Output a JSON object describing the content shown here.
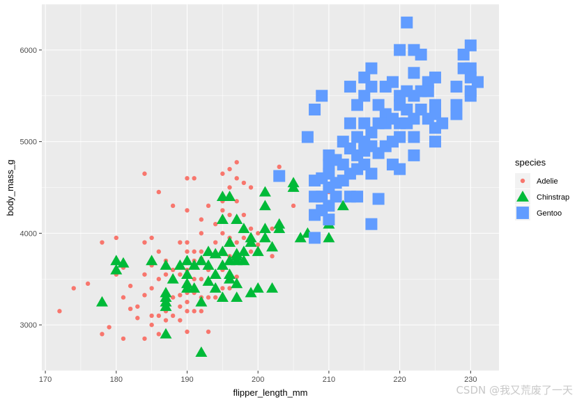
{
  "watermark": "CSDN @我又荒废了一天",
  "colors": {
    "panel_bg": "#EBEBEB",
    "grid": "#FFFFFF",
    "Adelie": "#F8766D",
    "Chinstrap": "#00BA38",
    "Gentoo": "#619CFF"
  },
  "chart_data": {
    "type": "scatter",
    "xlabel": "flipper_length_mm",
    "ylabel": "body_mass_g",
    "xlim": [
      169.5,
      234
    ],
    "ylim": [
      2500,
      6500
    ],
    "x_ticks": [
      170,
      180,
      190,
      200,
      210,
      220,
      230
    ],
    "y_ticks": [
      3000,
      4000,
      5000,
      6000
    ],
    "grid": true,
    "legend": {
      "title": "species",
      "position": "right",
      "entries": [
        {
          "label": "Adelie",
          "shape": "circle"
        },
        {
          "label": "Chinstrap",
          "shape": "triangle"
        },
        {
          "label": "Gentoo",
          "shape": "square"
        }
      ]
    },
    "series": [
      {
        "name": "Adelie",
        "shape": "circle",
        "points": [
          [
            172,
            3150
          ],
          [
            174,
            3400
          ],
          [
            176,
            3450
          ],
          [
            178,
            3900
          ],
          [
            178,
            2900
          ],
          [
            179,
            2975
          ],
          [
            180,
            3950
          ],
          [
            180,
            3700
          ],
          [
            180,
            3550
          ],
          [
            181,
            2850
          ],
          [
            181,
            3300
          ],
          [
            181,
            3625
          ],
          [
            182,
            3175
          ],
          [
            182,
            3425
          ],
          [
            183,
            3075
          ],
          [
            183,
            3200
          ],
          [
            184,
            4650
          ],
          [
            184,
            3900
          ],
          [
            184,
            3550
          ],
          [
            184,
            3325
          ],
          [
            184,
            2850
          ],
          [
            185,
            3950
          ],
          [
            185,
            3650
          ],
          [
            185,
            3400
          ],
          [
            185,
            3100
          ],
          [
            185,
            3000
          ],
          [
            186,
            4450
          ],
          [
            186,
            3800
          ],
          [
            186,
            3500
          ],
          [
            186,
            3100
          ],
          [
            186,
            2900
          ],
          [
            187,
            3700
          ],
          [
            187,
            3550
          ],
          [
            187,
            3350
          ],
          [
            187,
            3200
          ],
          [
            187,
            3150
          ],
          [
            187,
            3050
          ],
          [
            188,
            4300
          ],
          [
            188,
            3600
          ],
          [
            188,
            3500
          ],
          [
            188,
            3300
          ],
          [
            188,
            3100
          ],
          [
            189,
            3900
          ],
          [
            189,
            3550
          ],
          [
            189,
            3325
          ],
          [
            189,
            3200
          ],
          [
            189,
            3050
          ],
          [
            190,
            4600
          ],
          [
            190,
            4250
          ],
          [
            190,
            3900
          ],
          [
            190,
            3800
          ],
          [
            190,
            3675
          ],
          [
            190,
            3600
          ],
          [
            190,
            3450
          ],
          [
            190,
            3350
          ],
          [
            190,
            3250
          ],
          [
            190,
            3150
          ],
          [
            190,
            2925
          ],
          [
            191,
            4600
          ],
          [
            191,
            3800
          ],
          [
            191,
            3700
          ],
          [
            191,
            3500
          ],
          [
            191,
            3350
          ],
          [
            191,
            3150
          ],
          [
            192,
            4150
          ],
          [
            192,
            4000
          ],
          [
            192,
            3800
          ],
          [
            192,
            3725
          ],
          [
            192,
            3500
          ],
          [
            192,
            3300
          ],
          [
            192,
            3150
          ],
          [
            193,
            4300
          ],
          [
            193,
            3800
          ],
          [
            193,
            3600
          ],
          [
            193,
            3300
          ],
          [
            193,
            2925
          ],
          [
            194,
            4100
          ],
          [
            194,
            3900
          ],
          [
            194,
            3775
          ],
          [
            194,
            3550
          ],
          [
            194,
            3300
          ],
          [
            195,
            4650
          ],
          [
            195,
            4350
          ],
          [
            195,
            4250
          ],
          [
            195,
            4000
          ],
          [
            195,
            3800
          ],
          [
            195,
            3600
          ],
          [
            195,
            3400
          ],
          [
            196,
            4700
          ],
          [
            196,
            4500
          ],
          [
            196,
            4400
          ],
          [
            196,
            4200
          ],
          [
            196,
            3950
          ],
          [
            196,
            3750
          ],
          [
            196,
            3550
          ],
          [
            196,
            3400
          ],
          [
            197,
            4775
          ],
          [
            197,
            4600
          ],
          [
            197,
            4350
          ],
          [
            197,
            4150
          ],
          [
            197,
            3900
          ],
          [
            197,
            3700
          ],
          [
            197,
            3525
          ],
          [
            198,
            4550
          ],
          [
            198,
            4200
          ],
          [
            198,
            3950
          ],
          [
            198,
            3700
          ],
          [
            199,
            4500
          ],
          [
            199,
            4050
          ],
          [
            199,
            3800
          ],
          [
            200,
            4000
          ],
          [
            200,
            3875
          ],
          [
            201,
            4050
          ],
          [
            202,
            4050
          ],
          [
            202,
            3750
          ],
          [
            203,
            4725
          ],
          [
            205,
            4300
          ],
          [
            210,
            4450
          ]
        ]
      },
      {
        "name": "Chinstrap",
        "shape": "triangle",
        "points": [
          [
            178,
            3250
          ],
          [
            180,
            3700
          ],
          [
            180,
            3600
          ],
          [
            181,
            3675
          ],
          [
            185,
            3700
          ],
          [
            187,
            3650
          ],
          [
            187,
            3350
          ],
          [
            187,
            3300
          ],
          [
            187,
            3250
          ],
          [
            187,
            3200
          ],
          [
            187,
            2900
          ],
          [
            188,
            3500
          ],
          [
            189,
            3650
          ],
          [
            190,
            3700
          ],
          [
            190,
            3550
          ],
          [
            190,
            3450
          ],
          [
            190,
            3400
          ],
          [
            191,
            3650
          ],
          [
            191,
            3400
          ],
          [
            192,
            3700
          ],
          [
            192,
            3250
          ],
          [
            192,
            2700
          ],
          [
            193,
            3800
          ],
          [
            193,
            3650
          ],
          [
            193,
            3475
          ],
          [
            194,
            3775
          ],
          [
            194,
            3550
          ],
          [
            194,
            3400
          ],
          [
            195,
            4400
          ],
          [
            195,
            4150
          ],
          [
            195,
            3800
          ],
          [
            195,
            3650
          ],
          [
            195,
            3300
          ],
          [
            196,
            4400
          ],
          [
            196,
            3900
          ],
          [
            196,
            3700
          ],
          [
            196,
            3550
          ],
          [
            196,
            3500
          ],
          [
            197,
            4150
          ],
          [
            197,
            3775
          ],
          [
            197,
            3750
          ],
          [
            197,
            3700
          ],
          [
            197,
            3450
          ],
          [
            197,
            3300
          ],
          [
            198,
            4050
          ],
          [
            198,
            3800
          ],
          [
            198,
            3700
          ],
          [
            199,
            3950
          ],
          [
            199,
            3900
          ],
          [
            199,
            3350
          ],
          [
            200,
            3800
          ],
          [
            200,
            3400
          ],
          [
            201,
            4450
          ],
          [
            201,
            4300
          ],
          [
            201,
            4050
          ],
          [
            201,
            3950
          ],
          [
            202,
            3850
          ],
          [
            202,
            3400
          ],
          [
            203,
            4050
          ],
          [
            203,
            4100
          ],
          [
            205,
            4500
          ],
          [
            205,
            4550
          ],
          [
            206,
            3950
          ],
          [
            207,
            4000
          ],
          [
            210,
            4800
          ],
          [
            210,
            4100
          ],
          [
            210,
            3950
          ],
          [
            212,
            4300
          ]
        ]
      },
      {
        "name": "Gentoo",
        "shape": "square",
        "points": [
          [
            203,
            4625
          ],
          [
            207,
            5050
          ],
          [
            208,
            5350
          ],
          [
            208,
            4575
          ],
          [
            208,
            4400
          ],
          [
            208,
            4200
          ],
          [
            208,
            3950
          ],
          [
            209,
            5500
          ],
          [
            209,
            4600
          ],
          [
            209,
            4400
          ],
          [
            209,
            4250
          ],
          [
            210,
            4850
          ],
          [
            210,
            4750
          ],
          [
            210,
            4650
          ],
          [
            210,
            4500
          ],
          [
            210,
            4300
          ],
          [
            210,
            4150
          ],
          [
            211,
            4800
          ],
          [
            211,
            4550
          ],
          [
            211,
            4400
          ],
          [
            212,
            5000
          ],
          [
            212,
            4750
          ],
          [
            212,
            4575
          ],
          [
            213,
            5600
          ],
          [
            213,
            5200
          ],
          [
            213,
            4925
          ],
          [
            213,
            4650
          ],
          [
            213,
            4400
          ],
          [
            214,
            5400
          ],
          [
            214,
            5050
          ],
          [
            214,
            4850
          ],
          [
            214,
            4700
          ],
          [
            214,
            4400
          ],
          [
            215,
            5700
          ],
          [
            215,
            5500
          ],
          [
            215,
            5200
          ],
          [
            215,
            5000
          ],
          [
            215,
            4900
          ],
          [
            215,
            4750
          ],
          [
            216,
            5800
          ],
          [
            216,
            5600
          ],
          [
            216,
            5100
          ],
          [
            216,
            4950
          ],
          [
            216,
            4650
          ],
          [
            216,
            4100
          ],
          [
            217,
            5400
          ],
          [
            217,
            5200
          ],
          [
            217,
            4875
          ],
          [
            217,
            4375
          ],
          [
            218,
            5600
          ],
          [
            218,
            5300
          ],
          [
            218,
            5200
          ],
          [
            218,
            4950
          ],
          [
            219,
            5650
          ],
          [
            219,
            5250
          ],
          [
            219,
            5000
          ],
          [
            219,
            4750
          ],
          [
            220,
            6000
          ],
          [
            220,
            5500
          ],
          [
            220,
            5400
          ],
          [
            220,
            5200
          ],
          [
            220,
            5050
          ],
          [
            220,
            4700
          ],
          [
            221,
            6300
          ],
          [
            221,
            5550
          ],
          [
            221,
            5350
          ],
          [
            221,
            5200
          ],
          [
            222,
            6000
          ],
          [
            222,
            5750
          ],
          [
            222,
            5500
          ],
          [
            222,
            5250
          ],
          [
            222,
            5050
          ],
          [
            222,
            4850
          ],
          [
            223,
            5950
          ],
          [
            223,
            5550
          ],
          [
            223,
            5350
          ],
          [
            224,
            5650
          ],
          [
            224,
            5550
          ],
          [
            224,
            5250
          ],
          [
            225,
            5700
          ],
          [
            225,
            5400
          ],
          [
            225,
            5300
          ],
          [
            225,
            5150
          ],
          [
            225,
            5000
          ],
          [
            226,
            5200
          ],
          [
            228,
            5600
          ],
          [
            228,
            5400
          ],
          [
            228,
            5300
          ],
          [
            229,
            5950
          ],
          [
            229,
            5800
          ],
          [
            230,
            6050
          ],
          [
            230,
            5800
          ],
          [
            230,
            5700
          ],
          [
            230,
            5550
          ],
          [
            230,
            5500
          ],
          [
            231,
            5650
          ]
        ]
      }
    ]
  }
}
